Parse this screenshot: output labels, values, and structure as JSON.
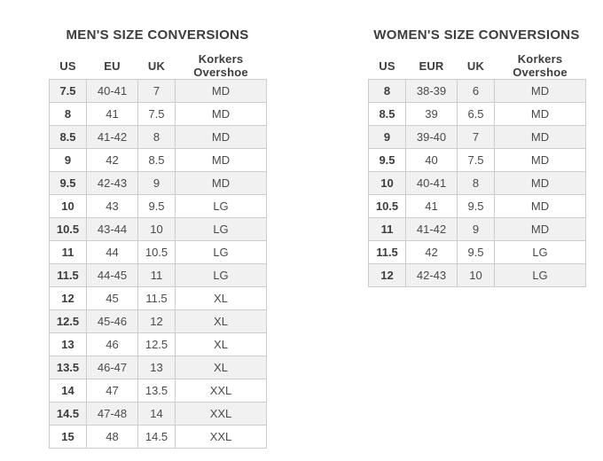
{
  "colors": {
    "page_background": "#ffffff",
    "title_text": "#3d3d3d",
    "cell_text": "#4a4a4a",
    "stripe_row": "#f1f1f1",
    "cell_border": "#cccccc"
  },
  "tables": [
    {
      "title": "MEN'S SIZE CONVERSIONS",
      "columns": [
        "US",
        "EU",
        "UK",
        "Korkers Overshoe"
      ],
      "rows": [
        [
          "7.5",
          "40-41",
          "7",
          "MD"
        ],
        [
          "8",
          "41",
          "7.5",
          "MD"
        ],
        [
          "8.5",
          "41-42",
          "8",
          "MD"
        ],
        [
          "9",
          "42",
          "8.5",
          "MD"
        ],
        [
          "9.5",
          "42-43",
          "9",
          "MD"
        ],
        [
          "10",
          "43",
          "9.5",
          "LG"
        ],
        [
          "10.5",
          "43-44",
          "10",
          "LG"
        ],
        [
          "11",
          "44",
          "10.5",
          "LG"
        ],
        [
          "11.5",
          "44-45",
          "11",
          "LG"
        ],
        [
          "12",
          "45",
          "11.5",
          "XL"
        ],
        [
          "12.5",
          "45-46",
          "12",
          "XL"
        ],
        [
          "13",
          "46",
          "12.5",
          "XL"
        ],
        [
          "13.5",
          "46-47",
          "13",
          "XL"
        ],
        [
          "14",
          "47",
          "13.5",
          "XXL"
        ],
        [
          "14.5",
          "47-48",
          "14",
          "XXL"
        ],
        [
          "15",
          "48",
          "14.5",
          "XXL"
        ]
      ]
    },
    {
      "title": "WOMEN'S SIZE CONVERSIONS",
      "columns": [
        "US",
        "EUR",
        "UK",
        "Korkers Overshoe"
      ],
      "rows": [
        [
          "8",
          "38-39",
          "6",
          "MD"
        ],
        [
          "8.5",
          "39",
          "6.5",
          "MD"
        ],
        [
          "9",
          "39-40",
          "7",
          "MD"
        ],
        [
          "9.5",
          "40",
          "7.5",
          "MD"
        ],
        [
          "10",
          "40-41",
          "8",
          "MD"
        ],
        [
          "10.5",
          "41",
          "9.5",
          "MD"
        ],
        [
          "11",
          "41-42",
          "9",
          "MD"
        ],
        [
          "11.5",
          "42",
          "9.5",
          "LG"
        ],
        [
          "12",
          "42-43",
          "10",
          "LG"
        ]
      ]
    }
  ]
}
